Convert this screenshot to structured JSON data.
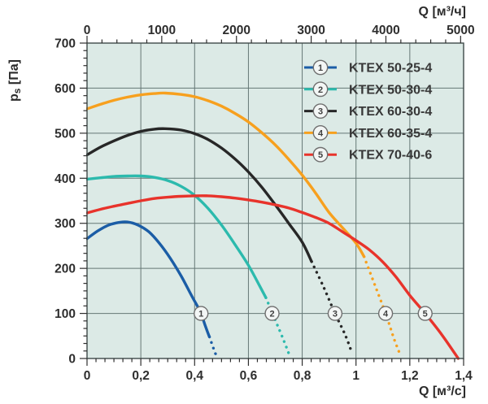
{
  "chart_data": {
    "type": "line",
    "title": "",
    "legend_position": "top-right-inside",
    "grid": true,
    "x_bottom": {
      "label": "Q [м³/с]",
      "min": 0,
      "max": 1.4,
      "major_ticks": [
        0,
        0.2,
        0.4,
        0.6,
        0.8,
        1.0,
        1.2,
        1.4
      ],
      "tick_labels": [
        "0",
        "0,2",
        "0,4",
        "0,6",
        "0,8",
        "1",
        "1,2",
        "1,4"
      ],
      "minor_subdivisions": 6
    },
    "x_top": {
      "label": "Q [м³/ч]",
      "min": 0,
      "max": 5000,
      "major_ticks": [
        0,
        1000,
        2000,
        3000,
        4000,
        5000
      ],
      "tick_labels": [
        "0",
        "1000",
        "2000",
        "3000",
        "4000",
        "5000"
      ],
      "minor_step": 200,
      "conversion_factor_to_bottom": 3600
    },
    "y_left": {
      "label_pre": "p",
      "label_sub": "s",
      "label_post": " [Па]",
      "min": 0,
      "max": 700,
      "major_ticks": [
        0,
        100,
        200,
        300,
        400,
        500,
        600,
        700
      ],
      "tick_labels": [
        "0",
        "100",
        "200",
        "300",
        "400",
        "500",
        "600",
        "700"
      ],
      "minor_subdivisions": 6
    },
    "colors": {
      "plot_bg": "#dceae6",
      "grid": "#657775",
      "border": "#3f4a49",
      "tick": "#2e2e2e",
      "marker_fill": "#f3f6f5",
      "marker_stroke": "#6f6f6f"
    },
    "series": [
      {
        "number": "1",
        "name": "KTEX 50-25-4",
        "color": "#1b5da6",
        "solid": [
          [
            0,
            266
          ],
          [
            0.04,
            283
          ],
          [
            0.08,
            296
          ],
          [
            0.12,
            302
          ],
          [
            0.15,
            303
          ],
          [
            0.19,
            296
          ],
          [
            0.23,
            281
          ],
          [
            0.27,
            255
          ],
          [
            0.31,
            222
          ],
          [
            0.35,
            183
          ],
          [
            0.39,
            138
          ],
          [
            0.42,
            105
          ],
          [
            0.44,
            72
          ],
          [
            0.455,
            48
          ]
        ],
        "dotted": [
          [
            0.455,
            48
          ],
          [
            0.468,
            26
          ],
          [
            0.478,
            10
          ]
        ],
        "marker_at": [
          0.424,
          100
        ]
      },
      {
        "number": "2",
        "name": "KTEX 50-30-4",
        "color": "#2cbaad",
        "solid": [
          [
            0,
            398
          ],
          [
            0.05,
            401
          ],
          [
            0.1,
            404
          ],
          [
            0.15,
            405
          ],
          [
            0.2,
            405
          ],
          [
            0.25,
            402
          ],
          [
            0.3,
            395
          ],
          [
            0.35,
            382
          ],
          [
            0.4,
            362
          ],
          [
            0.45,
            333
          ],
          [
            0.5,
            296
          ],
          [
            0.55,
            253
          ],
          [
            0.6,
            207
          ],
          [
            0.64,
            163
          ],
          [
            0.665,
            135
          ]
        ],
        "dotted": [
          [
            0.665,
            135
          ],
          [
            0.7,
            85
          ],
          [
            0.73,
            42
          ],
          [
            0.752,
            8
          ]
        ],
        "marker_at": [
          0.688,
          100
        ]
      },
      {
        "number": "3",
        "name": "KTEX 60-30-4",
        "color": "#272727",
        "solid": [
          [
            0,
            452
          ],
          [
            0.05,
            469
          ],
          [
            0.1,
            483
          ],
          [
            0.15,
            495
          ],
          [
            0.2,
            504
          ],
          [
            0.25,
            509
          ],
          [
            0.29,
            510
          ],
          [
            0.35,
            507
          ],
          [
            0.4,
            499
          ],
          [
            0.45,
            486
          ],
          [
            0.5,
            467
          ],
          [
            0.55,
            443
          ],
          [
            0.6,
            414
          ],
          [
            0.65,
            380
          ],
          [
            0.7,
            341
          ],
          [
            0.75,
            300
          ],
          [
            0.8,
            258
          ],
          [
            0.835,
            215
          ]
        ],
        "dotted": [
          [
            0.835,
            215
          ],
          [
            0.88,
            158
          ],
          [
            0.922,
            100
          ],
          [
            0.96,
            52
          ],
          [
            0.985,
            12
          ]
        ],
        "marker_at": [
          0.922,
          100
        ]
      },
      {
        "number": "4",
        "name": "KTEX 60-35-4",
        "color": "#f7a01e",
        "solid": [
          [
            0,
            554
          ],
          [
            0.05,
            564
          ],
          [
            0.1,
            573
          ],
          [
            0.15,
            580
          ],
          [
            0.2,
            585
          ],
          [
            0.25,
            588
          ],
          [
            0.29,
            589
          ],
          [
            0.35,
            586
          ],
          [
            0.4,
            581
          ],
          [
            0.45,
            572
          ],
          [
            0.5,
            560
          ],
          [
            0.55,
            544
          ],
          [
            0.6,
            525
          ],
          [
            0.65,
            501
          ],
          [
            0.7,
            474
          ],
          [
            0.75,
            442
          ],
          [
            0.8,
            407
          ],
          [
            0.85,
            367
          ],
          [
            0.9,
            324
          ],
          [
            0.95,
            290
          ],
          [
            1.0,
            256
          ],
          [
            1.03,
            226
          ]
        ],
        "dotted": [
          [
            1.03,
            226
          ],
          [
            1.07,
            163
          ],
          [
            1.11,
            100
          ],
          [
            1.14,
            46
          ],
          [
            1.163,
            10
          ]
        ],
        "marker_at": [
          1.11,
          100
        ]
      },
      {
        "number": "5",
        "name": "KTEX 70-40-6",
        "color": "#e8332b",
        "solid": [
          [
            0,
            323
          ],
          [
            0.05,
            331
          ],
          [
            0.1,
            338
          ],
          [
            0.15,
            344
          ],
          [
            0.2,
            350
          ],
          [
            0.25,
            355
          ],
          [
            0.3,
            358
          ],
          [
            0.35,
            360
          ],
          [
            0.4,
            361
          ],
          [
            0.45,
            361
          ],
          [
            0.5,
            359
          ],
          [
            0.55,
            356
          ],
          [
            0.6,
            352
          ],
          [
            0.65,
            347
          ],
          [
            0.7,
            341
          ],
          [
            0.75,
            334
          ],
          [
            0.8,
            324
          ],
          [
            0.85,
            313
          ],
          [
            0.9,
            300
          ],
          [
            0.95,
            281
          ],
          [
            1.0,
            262
          ],
          [
            1.05,
            241
          ],
          [
            1.1,
            214
          ],
          [
            1.15,
            180
          ],
          [
            1.2,
            140
          ],
          [
            1.257,
            100
          ],
          [
            1.32,
            52
          ],
          [
            1.38,
            0
          ]
        ],
        "dotted": [],
        "marker_at": [
          1.257,
          100
        ]
      }
    ],
    "legend": {
      "entries": [
        {
          "number": "1",
          "label": "KTEX 50-25-4"
        },
        {
          "number": "2",
          "label": "KTEX 50-30-4"
        },
        {
          "number": "3",
          "label": "KTEX 60-30-4"
        },
        {
          "number": "4",
          "label": "KTEX 60-35-4"
        },
        {
          "number": "5",
          "label": "KTEX 70-40-6"
        }
      ]
    }
  }
}
